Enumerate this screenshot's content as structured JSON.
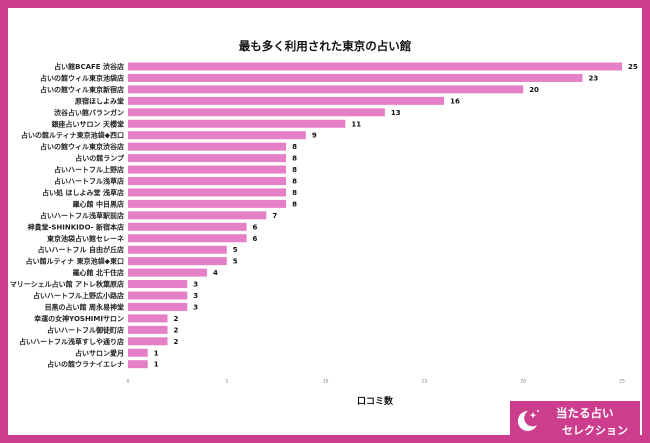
{
  "chart_data": {
    "type": "bar",
    "orientation": "horizontal",
    "title": "最も多く利用された東京の占い館",
    "xlabel": "口コミ数",
    "ylabel": "",
    "xlim": [
      0,
      25
    ],
    "xticks": [
      "0",
      "5",
      "10",
      "15",
      "20",
      "25"
    ],
    "grid": false,
    "legend": "none",
    "categories": [
      "占い館BCAFE 渋谷店",
      "占いの館ウィル東京池袋店",
      "占いの館ウィル東京新宿店",
      "原宿ほしよみ堂",
      "渋谷占い館バランガン",
      "銀座占いサロン 天櫻堂",
      "占いの館ルティナ東京池袋◆西口",
      "占いの館ウィル東京渋谷店",
      "占いの館ランプ",
      "占いハートフル上野店",
      "占いハートフル浅草店",
      "占い処 ほしよみ堂 浅草店",
      "羅心館 中目黒店",
      "占いハートフル浅草駅前店",
      "神貴堂-SHINKIDO- 新宿本店",
      "東京池袋占い館セレーネ",
      "占いハートフル 自由が丘店",
      "占い館ルティナ 東京池袋◆東口",
      "羅心館 北千住店",
      "マリーシェル占い館 アトレ秋葉原店",
      "占いハートフル上野広小路店",
      "目黒の占い館 周永易神堂",
      "幸運の女神YOSHIMIサロン",
      "占いハートフル御徒町店",
      "占いハートフル浅草すしや通り店",
      "占いサロン愛月",
      "占いの館ウラナイエレナ"
    ],
    "values": [
      25,
      23,
      20,
      16,
      13,
      11,
      9,
      8,
      8,
      8,
      8,
      8,
      8,
      7,
      6,
      6,
      5,
      5,
      4,
      3,
      3,
      3,
      2,
      2,
      2,
      1,
      1
    ],
    "bar_color": "#e57fc7"
  },
  "brand": {
    "line1": "当たる占い",
    "line2": "セレクション",
    "color": "#cc3d8d",
    "icon": "crescent-moon-stars-icon"
  },
  "frame_color": "#cc3d8d"
}
